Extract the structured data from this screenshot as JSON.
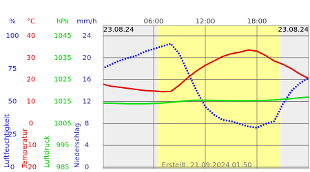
{
  "chart_data": {
    "type": "line",
    "date_left": "23.08.24",
    "date_right": "23.08.24",
    "footer": "Erstellt: 21.09.2024 01:50",
    "xlim": [
      0,
      24
    ],
    "xticks": [
      {
        "value": 6,
        "label": "06:00"
      },
      {
        "value": 12,
        "label": "12:00"
      },
      {
        "value": 18,
        "label": "18:00"
      }
    ],
    "daylight": [
      6.5,
      20.7
    ],
    "axes": [
      {
        "unit": "%",
        "label": "Luftfeuchtigkeit",
        "color": "#1a1ae0",
        "ylim": [
          0,
          100
        ],
        "yticks": [
          0,
          25,
          50,
          75,
          100
        ]
      },
      {
        "unit": "°C",
        "label": "Temperatur",
        "color": "#e00000",
        "ylim": [
          -20,
          40
        ],
        "yticks": [
          -20,
          -10,
          0,
          10,
          20,
          30,
          40
        ]
      },
      {
        "unit": "hPa",
        "label": "Luftdruck",
        "color": "#00cc00",
        "ylim": [
          985,
          1045
        ],
        "yticks": [
          985,
          995,
          1005,
          1015,
          1025,
          1035,
          1045
        ]
      },
      {
        "unit": "mm/h",
        "label": "Niederschlag",
        "color": "#2a2ab0",
        "ylim": [
          0,
          24
        ],
        "yticks": [
          0,
          4,
          8,
          12,
          16,
          20,
          24
        ],
        "grid": true
      }
    ],
    "x": [
      0,
      1,
      2,
      3,
      4,
      5,
      6,
      7,
      8,
      9,
      10,
      11,
      12,
      13,
      14,
      15,
      16,
      17,
      18,
      19,
      20,
      21,
      22,
      23,
      24
    ],
    "series": [
      {
        "name": "Luftfeuchtigkeit",
        "axis": 0,
        "color": "#0000ff",
        "style": "dotted",
        "values": [
          75,
          78,
          81,
          83,
          85,
          88,
          90,
          92,
          94,
          86,
          72,
          58,
          46,
          40,
          36,
          35,
          33,
          31,
          30,
          33,
          35,
          48,
          58,
          64,
          68
        ]
      },
      {
        "name": "Temperatur",
        "axis": 1,
        "color": "#e00000",
        "style": "solid",
        "values": [
          18,
          17,
          16.5,
          16,
          15.5,
          15,
          14.8,
          14.5,
          14.6,
          17.5,
          21,
          24,
          26.5,
          28.5,
          30.5,
          31.8,
          32.5,
          33.5,
          33,
          31,
          28.5,
          27,
          25,
          22.5,
          20.5
        ]
      },
      {
        "name": "Luftdruck",
        "axis": 2,
        "color": "#00dd00",
        "style": "solid",
        "values": [
          1014.2,
          1014.2,
          1014.1,
          1014,
          1014,
          1014,
          1014.1,
          1014.3,
          1014.6,
          1015,
          1015.4,
          1015.6,
          1015.6,
          1015.5,
          1015.4,
          1015.3,
          1015.3,
          1015.3,
          1015.4,
          1015.5,
          1015.7,
          1016,
          1016.3,
          1016.7,
          1017
        ]
      }
    ]
  }
}
